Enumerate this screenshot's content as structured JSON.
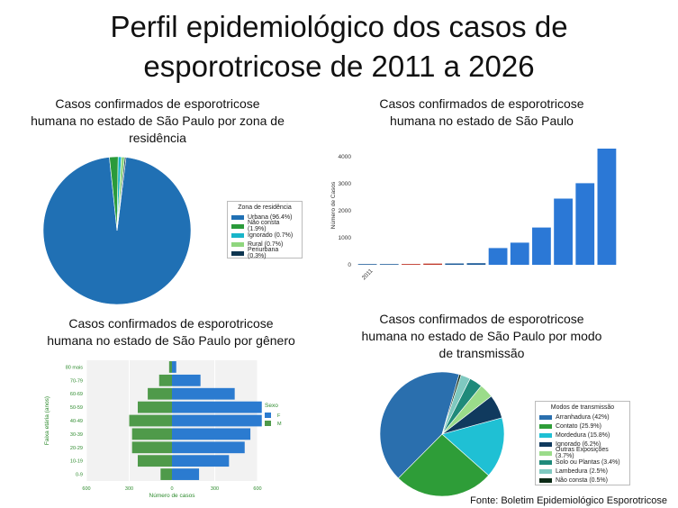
{
  "title_line1": "Perfil epidemiológico dos casos de",
  "title_line2": "esporotricose de 2011 a 2026",
  "source": "Fonte: Boletim Epidemiológico Esporotricose",
  "chart_data": [
    {
      "id": "zona",
      "type": "pie",
      "title_lines": [
        "Casos confirmados de esporotricose",
        "humana no estado de São Paulo por zona de",
        "residência"
      ],
      "legend_title": "Zona de residência",
      "slices": [
        {
          "label": "Urbana (96.4%)",
          "value": 96.4,
          "color": "#2070b4"
        },
        {
          "label": "Não consta (1.9%)",
          "value": 1.9,
          "color": "#2a9a3a"
        },
        {
          "label": "Ignorado (0.7%)",
          "value": 0.7,
          "color": "#19b5c9"
        },
        {
          "label": "Rural (0.7%)",
          "value": 0.7,
          "color": "#8fd67e"
        },
        {
          "label": "Periurbana (0.3%)",
          "value": 0.3,
          "color": "#0d3550"
        }
      ]
    },
    {
      "id": "anual",
      "type": "bar",
      "title_lines": [
        "Casos confirmados de esporotricose",
        "humana no estado de São Paulo"
      ],
      "ylabel": "Número de Casos",
      "yticks": [
        0,
        1000,
        2000,
        3000,
        4000
      ],
      "ylim": [
        0,
        4400
      ],
      "xtick_labels": [
        "2011"
      ],
      "values": [
        10,
        15,
        30,
        45,
        50,
        60,
        620,
        820,
        1380,
        2450,
        3020,
        4300
      ],
      "bar_colors": [
        "#1f5d9a",
        "#1f5d9a",
        "#c0392b",
        "#c0392b",
        "#1f5d9a",
        "#1f5d9a",
        "#2b78d6",
        "#2b78d6",
        "#2b78d6",
        "#2b78d6",
        "#2b78d6",
        "#2b78d6"
      ]
    },
    {
      "id": "genero",
      "type": "bar",
      "orientation": "horizontal-pyramid",
      "title_lines": [
        "Casos confirmados de esporotricose",
        "humana no estado de São Paulo por gênero"
      ],
      "ylabel": "Faixa etária (anos)",
      "xlabel": "Número de casos",
      "categories": [
        "0-9",
        "10-19",
        "20-29",
        "30-39",
        "40-49",
        "50-59",
        "60-69",
        "70-79",
        "80 mais"
      ],
      "xticks": [
        "600",
        "300",
        "0",
        "300",
        "600"
      ],
      "xlim": [
        -600,
        600
      ],
      "legend_title": "Sexo",
      "series": [
        {
          "name": "F",
          "color": "#2b7bd0",
          "values": [
            190,
            400,
            510,
            550,
            630,
            630,
            440,
            200,
            30
          ]
        },
        {
          "name": "M",
          "color": "#4f9a4a",
          "values": [
            -80,
            -240,
            -280,
            -280,
            -300,
            -240,
            -170,
            -90,
            -20
          ]
        }
      ]
    },
    {
      "id": "transmissao",
      "type": "pie",
      "title_lines": [
        "Casos confirmados de esporotricose",
        "humana no estado de São Paulo por modo",
        "de transmissão"
      ],
      "legend_title": "Modos de transmissão",
      "slices": [
        {
          "label": "Arranhadura (42%)",
          "value": 42,
          "color": "#2a6fae"
        },
        {
          "label": "Contato (25.9%)",
          "value": 25.9,
          "color": "#2e9d38"
        },
        {
          "label": "Mordedura (15.8%)",
          "value": 15.8,
          "color": "#1fc0d4"
        },
        {
          "label": "Ignorado (6.2%)",
          "value": 6.2,
          "color": "#103a5e"
        },
        {
          "label": "Outras Exposições (3.7%)",
          "value": 3.7,
          "color": "#9bdc8a"
        },
        {
          "label": "Solo ou Plantas (3.4%)",
          "value": 3.4,
          "color": "#1f8a7a"
        },
        {
          "label": "Lambedura (2.5%)",
          "value": 2.5,
          "color": "#7fc9c0"
        },
        {
          "label": "Não consta (0.5%)",
          "value": 0.5,
          "color": "#0c2a16"
        }
      ]
    }
  ]
}
